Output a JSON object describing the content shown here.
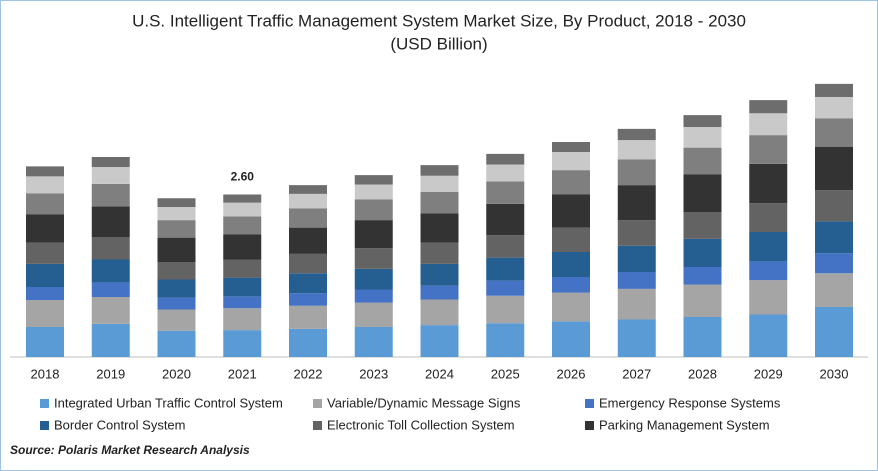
{
  "chart_data": {
    "type": "stacked_bar",
    "title": "U.S. Intelligent Traffic Management System Market Size, By Product, 2018 - 2030",
    "subtitle": "(USD Billion)",
    "source": "Source: Polaris Market Research Analysis",
    "categories": [
      "2018",
      "2019",
      "2020",
      "2021",
      "2022",
      "2023",
      "2024",
      "2025",
      "2026",
      "2027",
      "2028",
      "2029",
      "2030"
    ],
    "annotations": [
      {
        "category": "2021",
        "text": "2.60"
      }
    ],
    "series": [
      {
        "name": "Integrated Urban Traffic Control System",
        "color": "#5b9bd5",
        "values": [
          0.48,
          0.53,
          0.42,
          0.43,
          0.45,
          0.48,
          0.51,
          0.54,
          0.57,
          0.6,
          0.64,
          0.68,
          0.8
        ]
      },
      {
        "name": "Variable/Dynamic Message Signs",
        "color": "#a5a5a5",
        "values": [
          0.43,
          0.43,
          0.34,
          0.35,
          0.37,
          0.39,
          0.41,
          0.44,
          0.46,
          0.49,
          0.52,
          0.55,
          0.54
        ]
      },
      {
        "name": "Emergency Response Systems",
        "color": "#4472c4",
        "values": [
          0.21,
          0.23,
          0.19,
          0.19,
          0.2,
          0.21,
          0.22,
          0.24,
          0.25,
          0.27,
          0.28,
          0.3,
          0.32
        ]
      },
      {
        "name": "Border Control System",
        "color": "#255e91",
        "values": [
          0.37,
          0.37,
          0.29,
          0.3,
          0.32,
          0.33,
          0.35,
          0.37,
          0.4,
          0.42,
          0.45,
          0.47,
          0.51
        ]
      },
      {
        "name": "Electronic Toll Collection System",
        "color": "#636363",
        "values": [
          0.34,
          0.36,
          0.28,
          0.29,
          0.31,
          0.33,
          0.34,
          0.36,
          0.39,
          0.41,
          0.43,
          0.46,
          0.5
        ]
      },
      {
        "name": "Parking Management System",
        "color": "#333333",
        "values": [
          0.45,
          0.49,
          0.39,
          0.4,
          0.42,
          0.45,
          0.47,
          0.5,
          0.53,
          0.56,
          0.6,
          0.63,
          0.69
        ]
      },
      {
        "color": "#7f7f7f",
        "values": [
          0.34,
          0.36,
          0.28,
          0.29,
          0.31,
          0.33,
          0.34,
          0.36,
          0.39,
          0.41,
          0.43,
          0.46,
          0.46
        ]
      },
      {
        "color": "#c9c9c9",
        "values": [
          0.27,
          0.27,
          0.21,
          0.22,
          0.23,
          0.24,
          0.26,
          0.27,
          0.29,
          0.31,
          0.33,
          0.35,
          0.34
        ]
      },
      {
        "color": "#6d6d6d",
        "values": [
          0.16,
          0.16,
          0.14,
          0.13,
          0.14,
          0.15,
          0.17,
          0.17,
          0.16,
          0.18,
          0.19,
          0.21,
          0.21
        ]
      }
    ]
  }
}
